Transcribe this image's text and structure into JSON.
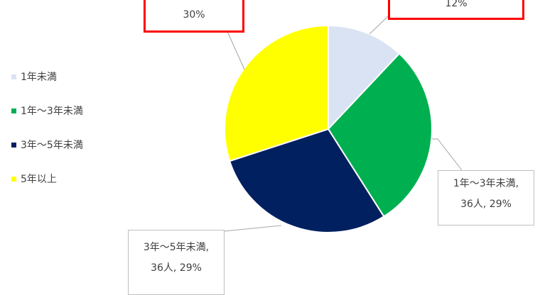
{
  "chart_data": {
    "type": "pie",
    "unit": "人",
    "series": [
      {
        "name": "1年未満",
        "percent": 12,
        "color": "#dae3f3"
      },
      {
        "name": "1年～3年未満",
        "count": 36,
        "percent": 29,
        "color": "#00b050"
      },
      {
        "name": "3年～5年未満",
        "count": 36,
        "percent": 29,
        "color": "#002060"
      },
      {
        "name": "5年以上",
        "percent": 30,
        "color": "#ffff00"
      }
    ],
    "legend_position": "left"
  },
  "data_labels": [
    {
      "lines": [
        "12%"
      ],
      "highlighted": true
    },
    {
      "lines": [
        "1年～3年未満,",
        "36人, 29%"
      ],
      "highlighted": false
    },
    {
      "lines": [
        "3年～5年未満,",
        "36人, 29%"
      ],
      "highlighted": false
    },
    {
      "lines": [
        "30%"
      ],
      "highlighted": true
    }
  ],
  "colors": {
    "highlight_border": "#ff0000",
    "label_border": "#bfbfbf"
  }
}
